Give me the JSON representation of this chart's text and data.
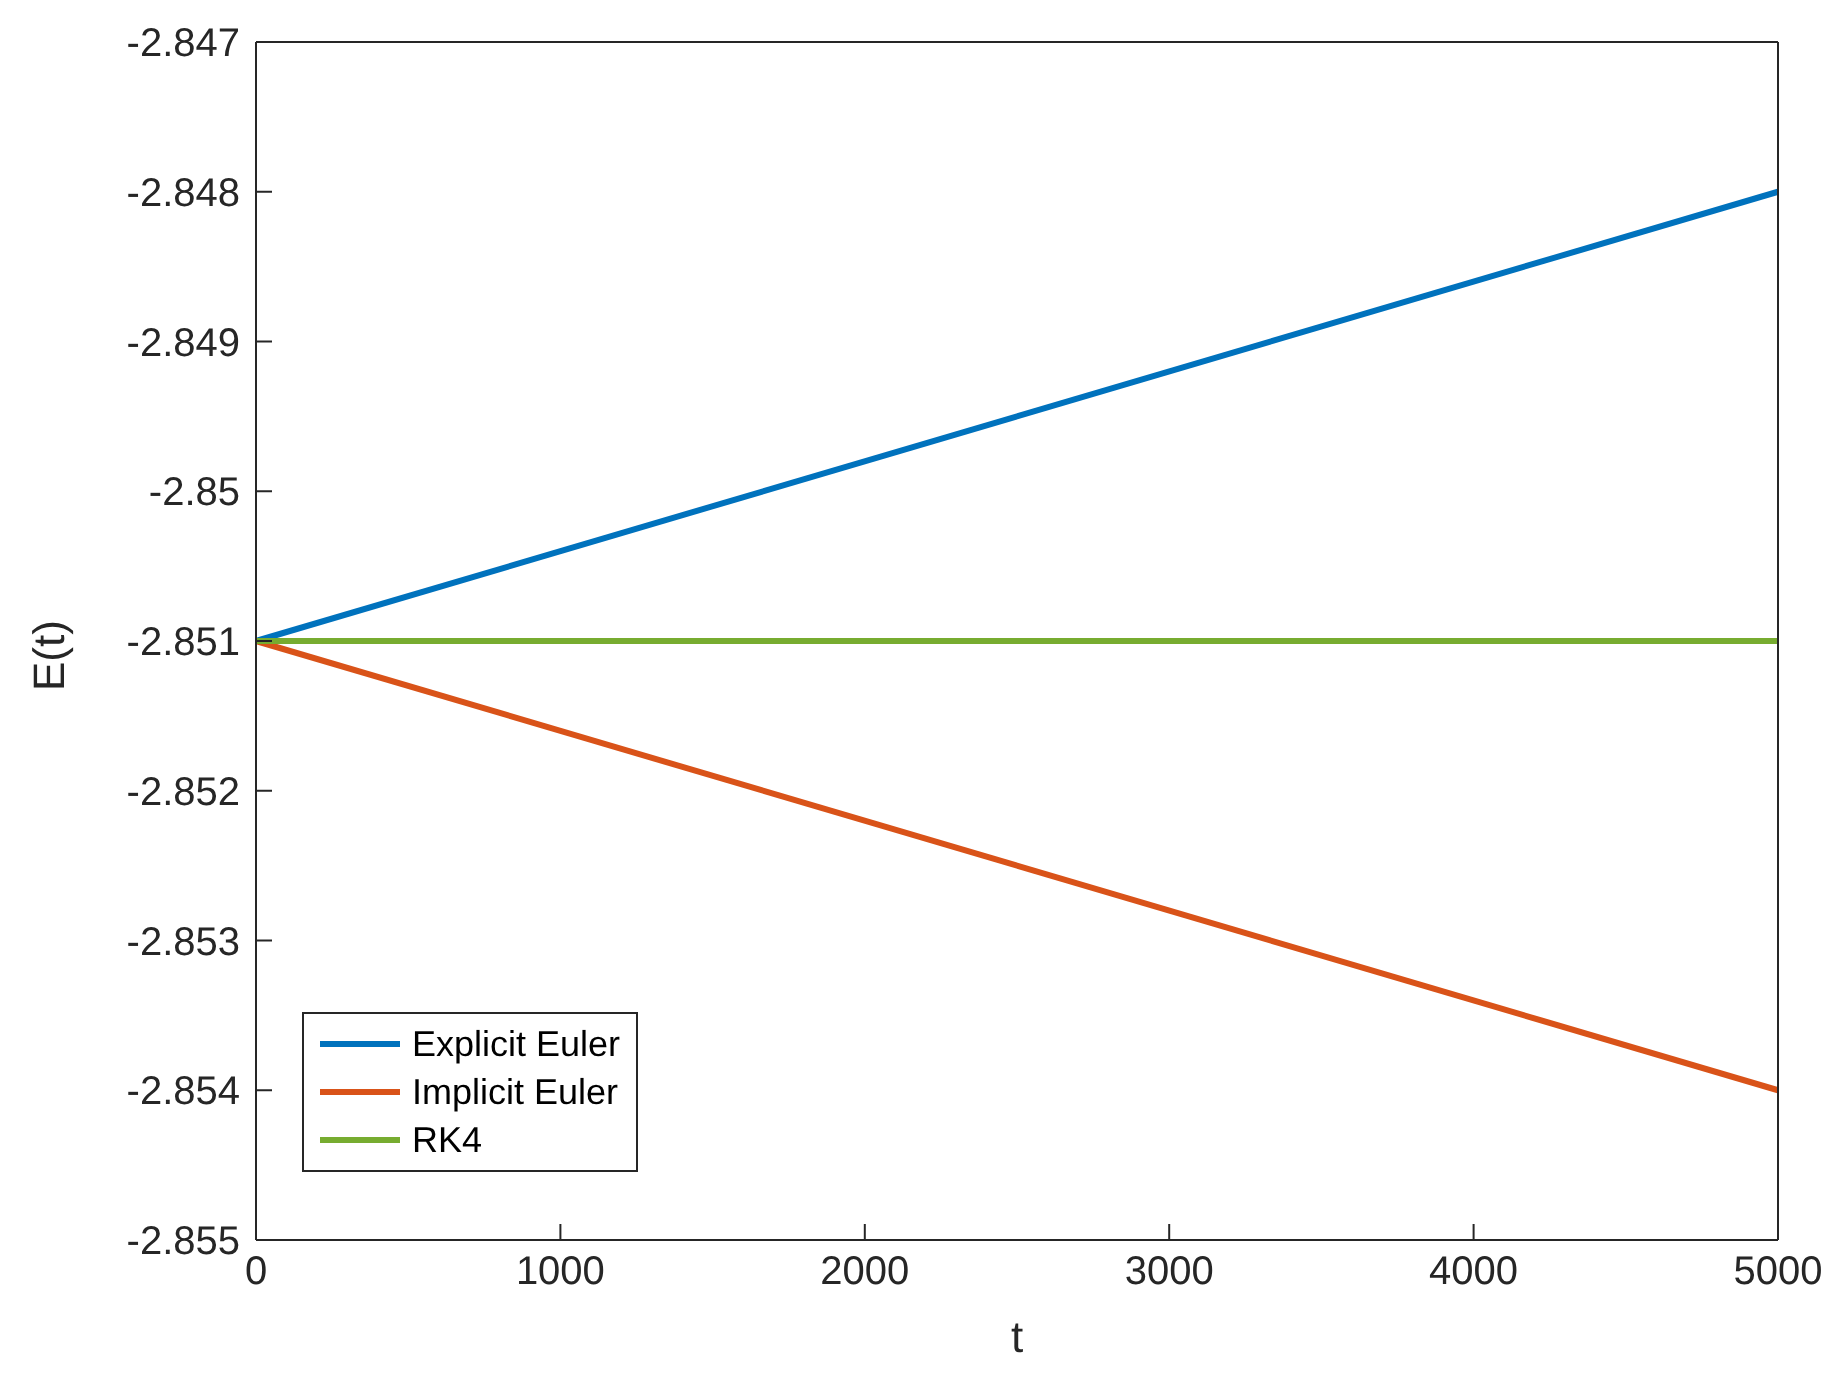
{
  "chart_data": {
    "type": "line",
    "xlabel": "t",
    "ylabel": "E(t)",
    "x": [
      0,
      5000
    ],
    "series": [
      {
        "name": "Explicit Euler",
        "color": "#0072bd",
        "values": [
          -2.851,
          -2.848
        ]
      },
      {
        "name": "Implicit Euler",
        "color": "#d95319",
        "values": [
          -2.851,
          -2.854
        ]
      },
      {
        "name": "RK4",
        "color": "#77ac30",
        "values": [
          -2.851,
          -2.851
        ]
      }
    ],
    "xlim": [
      0,
      5000
    ],
    "xticks": [
      0,
      1000,
      2000,
      3000,
      4000,
      5000
    ],
    "ylim": [
      -2.855,
      -2.847
    ],
    "yticks": [
      -2.855,
      -2.854,
      -2.853,
      -2.852,
      -2.851,
      -2.85,
      -2.849,
      -2.848,
      -2.847
    ],
    "grid": false,
    "legend": "bottom left",
    "marker": "none",
    "line_style": "solid"
  }
}
